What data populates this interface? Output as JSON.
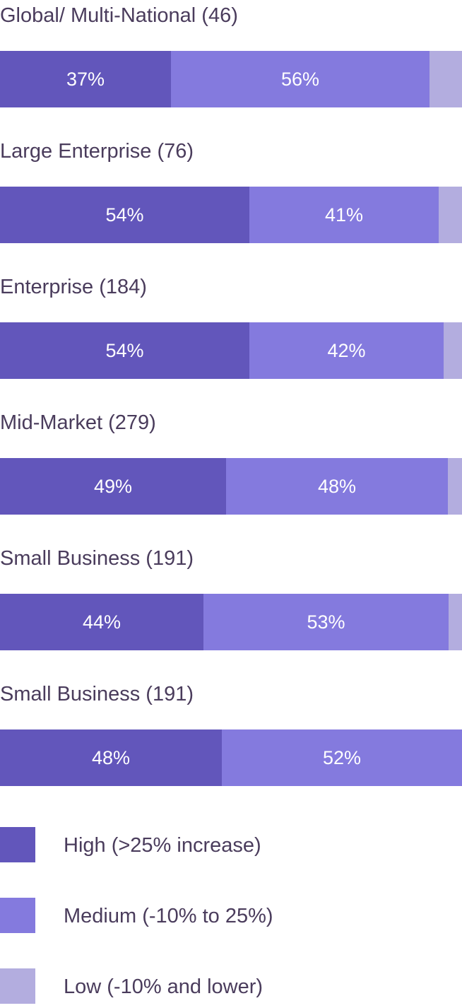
{
  "colors": {
    "high": "#6256bb",
    "medium": "#847ade",
    "low": "#b3addf",
    "text": "#4a3c5c"
  },
  "chart_data": {
    "type": "bar",
    "orientation": "horizontal",
    "stacked": true,
    "categories": [
      "Global/ Multi-National (46)",
      "Large Enterprise (76)",
      "Enterprise (184)",
      "Mid-Market (279)",
      "Small Business (191)",
      "Small Business (191)"
    ],
    "series": [
      {
        "name": "High (>25% increase)",
        "values": [
          37,
          54,
          54,
          49,
          44,
          48
        ],
        "labels": [
          "37%",
          "54%",
          "54%",
          "49%",
          "44%",
          "48%"
        ]
      },
      {
        "name": "Medium (-10% to 25%)",
        "values": [
          56,
          41,
          42,
          48,
          53,
          52
        ],
        "labels": [
          "56%",
          "41%",
          "42%",
          "48%",
          "53%",
          "52%"
        ]
      },
      {
        "name": "Low (-10% and lower)",
        "values": [
          7,
          5,
          4,
          3,
          3,
          0
        ],
        "labels": [
          "",
          "",
          "",
          "",
          "",
          ""
        ]
      }
    ],
    "xlim": [
      0,
      100
    ],
    "legend_placement": "bottom",
    "grid": false
  }
}
